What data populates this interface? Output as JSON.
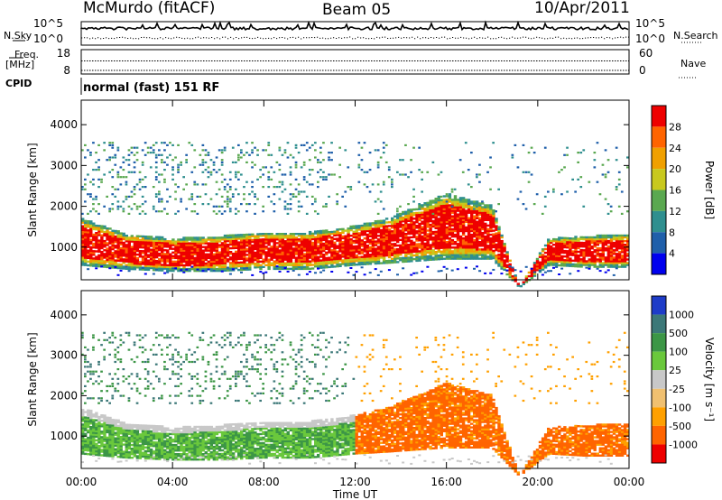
{
  "header": {
    "station": "McMurdo (fitACF)",
    "beam": "Beam 05",
    "date": "10/Apr/2011"
  },
  "left_labels": {
    "nsky": "N.Sky",
    "freq_line1": "Freq.",
    "freq_line2": "[MHz]",
    "cpid": "CPID"
  },
  "right_labels": {
    "nsearch": "N.Search",
    "nave": "Nave"
  },
  "cpid_text": "normal (fast) 151 RF",
  "noise_panel": {
    "left_ticks": [
      "10^5",
      "10^0"
    ],
    "right_ticks": [
      "10^5",
      "10^0"
    ]
  },
  "freq_panel": {
    "left_ticks": [
      "18",
      "8"
    ],
    "right_ticks": [
      "60",
      "0"
    ]
  },
  "chart_data": [
    {
      "type": "heatmap",
      "title": "",
      "xlabel": "",
      "ylabel": "Slant Range [km]",
      "xlim": [
        0,
        24
      ],
      "ylim": [
        200,
        4600
      ],
      "y_ticks": [
        "1000",
        "2000",
        "3000",
        "4000"
      ],
      "colorbar": {
        "label": "Power [dB]",
        "ticks": [
          "28",
          "24",
          "20",
          "16",
          "12",
          "8",
          "4"
        ],
        "colors": [
          "#0000ee",
          "#1f5faa",
          "#2f8f8f",
          "#5aa850",
          "#c8c81e",
          "#f0a000",
          "#ff6400",
          "#ee0000"
        ]
      },
      "main_scatter_band": {
        "hours": [
          0,
          2,
          4,
          6,
          8,
          10,
          12,
          13.5,
          16,
          18,
          19.2,
          20.5,
          22,
          24
        ],
        "lower_km": [
          550,
          450,
          400,
          400,
          450,
          450,
          550,
          600,
          700,
          700,
          0,
          550,
          500,
          500
        ],
        "upper_km": [
          1700,
          1300,
          1200,
          1250,
          1350,
          1350,
          1500,
          1700,
          2300,
          2000,
          0,
          1200,
          1250,
          1300
        ]
      }
    },
    {
      "type": "heatmap",
      "title": "",
      "xlabel": "Time UT",
      "ylabel": "Slant Range [km]",
      "xlim": [
        0,
        24
      ],
      "ylim": [
        200,
        4600
      ],
      "x_ticks": [
        "00:00",
        "04:00",
        "08:00",
        "12:00",
        "16:00",
        "20:00",
        "00:00"
      ],
      "y_ticks": [
        "1000",
        "2000",
        "3000",
        "4000"
      ],
      "colorbar": {
        "label": "Velocity [m s⁻¹]",
        "ticks": [
          "1000",
          "500",
          "100",
          "25",
          "-25",
          "-100",
          "-500",
          "-1000"
        ],
        "colors": [
          "#ee0000",
          "#ff6400",
          "#ffa000",
          "#f0c070",
          "#c8c8c8",
          "#6ac83c",
          "#3c9646",
          "#3c7878",
          "#1e3cc8"
        ]
      },
      "main_scatter_band": {
        "hours": [
          0,
          2,
          4,
          6,
          8,
          10,
          12,
          13.5,
          16,
          18,
          19.2,
          20.5,
          22,
          24
        ],
        "lower_km": [
          550,
          450,
          400,
          400,
          450,
          450,
          550,
          600,
          700,
          700,
          0,
          550,
          500,
          500
        ],
        "upper_km": [
          1700,
          1300,
          1200,
          1250,
          1350,
          1350,
          1500,
          1700,
          2300,
          2000,
          0,
          1200,
          1250,
          1300
        ]
      }
    }
  ]
}
